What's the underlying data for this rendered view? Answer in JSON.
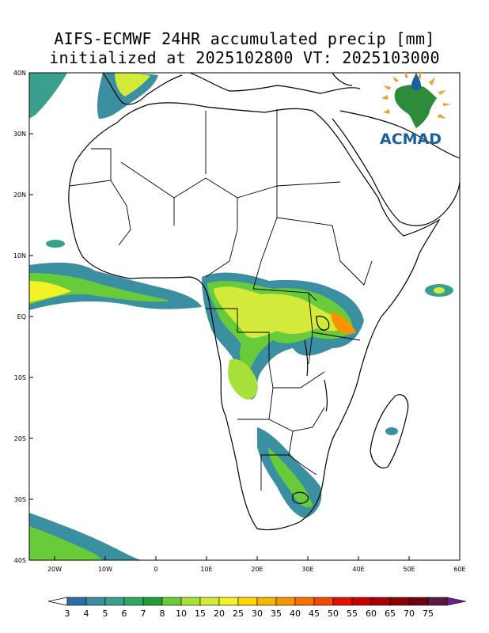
{
  "title": {
    "line1": "AIFS-ECMWF 24HR accumulated precip [mm]",
    "line2": "initialized at 2025102800 VT: 2025103000"
  },
  "logo": {
    "text": "ACMAD",
    "colors": {
      "text": "#1a5fa0",
      "continent": "#2e8b3a",
      "sun": "#f0a020"
    }
  },
  "axes": {
    "lat_labels": [
      "40N",
      "30N",
      "20N",
      "10N",
      "EQ",
      "10S",
      "20S",
      "30S",
      "40S"
    ],
    "lat_values": [
      40,
      30,
      20,
      10,
      0,
      -10,
      -20,
      -30,
      -40
    ],
    "lon_labels": [
      "20W",
      "10W",
      "0",
      "10E",
      "20E",
      "30E",
      "40E",
      "50E",
      "60E"
    ],
    "lon_values": [
      -20,
      -10,
      0,
      10,
      20,
      30,
      40,
      50,
      60
    ],
    "lon_range": [
      -25,
      60
    ],
    "lat_range": [
      -40,
      40
    ]
  },
  "colorbar": {
    "labels": [
      "3",
      "4",
      "5",
      "6",
      "7",
      "8",
      "10",
      "15",
      "20",
      "25",
      "30",
      "35",
      "40",
      "45",
      "50",
      "55",
      "60",
      "65",
      "70",
      "75"
    ],
    "colors": [
      "#2c6fa8",
      "#3a8fa0",
      "#3aa08e",
      "#2eaa60",
      "#1e9e34",
      "#68cc3a",
      "#a8e03a",
      "#d4ea3a",
      "#f2f228",
      "#ffd700",
      "#f7b500",
      "#f89400",
      "#f87000",
      "#f24800",
      "#e21000",
      "#c80000",
      "#a80000",
      "#8c0000",
      "#700010",
      "#5a1a40"
    ],
    "over_color": "#6b2090",
    "under_color": "#ffffff"
  }
}
